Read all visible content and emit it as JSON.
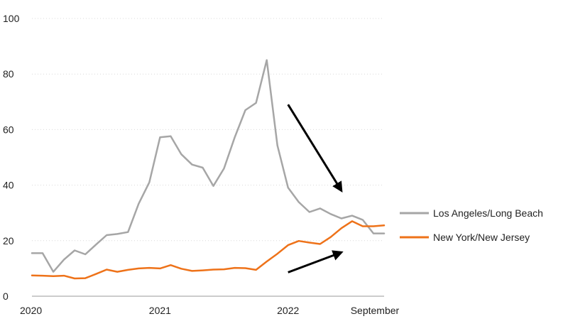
{
  "chart_data": {
    "type": "line",
    "title": "",
    "xlabel": "",
    "ylabel": "",
    "ylim": [
      0,
      100
    ],
    "y_ticks": [
      0,
      20,
      40,
      60,
      80,
      100
    ],
    "x_tick_labels": [
      "2020",
      "2021",
      "2022",
      "September"
    ],
    "grid": "horizontal dotted",
    "legend_position": "right",
    "x": [
      "2020-01",
      "2020-02",
      "2020-03",
      "2020-04",
      "2020-05",
      "2020-06",
      "2020-07",
      "2020-08",
      "2020-09",
      "2020-10",
      "2020-11",
      "2020-12",
      "2021-01",
      "2021-02",
      "2021-03",
      "2021-04",
      "2021-05",
      "2021-06",
      "2021-07",
      "2021-08",
      "2021-09",
      "2021-10",
      "2021-11",
      "2021-12",
      "2022-01",
      "2022-02",
      "2022-03",
      "2022-04",
      "2022-05",
      "2022-06",
      "2022-07",
      "2022-08",
      "2022-09",
      "2022-10"
    ],
    "series": [
      {
        "name": "Los Angeles/Long Beach",
        "color": "#a6a6a6",
        "values": [
          15.5,
          15.5,
          8.8,
          13.2,
          16.5,
          15.1,
          18.6,
          22.0,
          22.4,
          23.1,
          33.3,
          41.0,
          57.2,
          57.6,
          51.1,
          47.4,
          46.3,
          39.7,
          46.0,
          57.2,
          67.0,
          69.6,
          85.0,
          54.3,
          39.1,
          33.9,
          30.3,
          31.6,
          29.6,
          28.0,
          29.0,
          27.5,
          22.6,
          22.6
        ]
      },
      {
        "name": "New York/New Jersey",
        "color": "#ee7219",
        "values": [
          7.5,
          7.4,
          7.2,
          7.4,
          6.4,
          6.5,
          8.0,
          9.6,
          8.8,
          9.5,
          10.0,
          10.2,
          10.0,
          11.2,
          9.9,
          9.1,
          9.3,
          9.6,
          9.7,
          10.2,
          10.1,
          9.5,
          12.5,
          15.3,
          18.4,
          19.9,
          19.3,
          18.8,
          21.3,
          24.5,
          27.0,
          25.2,
          25.2,
          25.5
        ]
      }
    ],
    "annotations": [
      {
        "type": "arrow",
        "direction": "down",
        "from": {
          "x": "2022-01",
          "y": 69
        },
        "to": {
          "x": "2022-06",
          "y": 38
        }
      },
      {
        "type": "arrow",
        "direction": "up",
        "from": {
          "x": "2022-01",
          "y": 8.6
        },
        "to": {
          "x": "2022-06",
          "y": 15.8
        }
      }
    ]
  }
}
